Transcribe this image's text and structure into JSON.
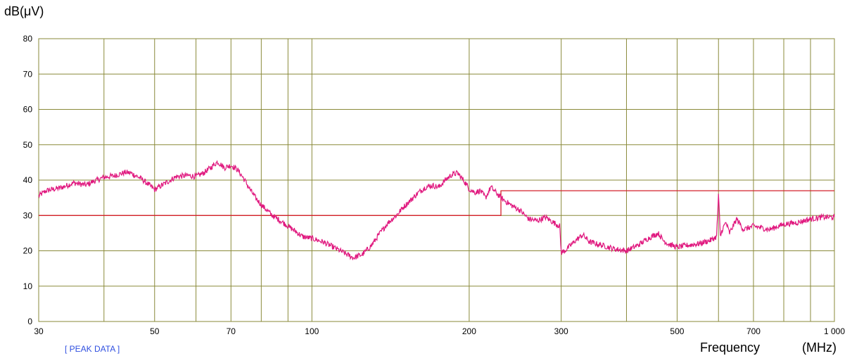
{
  "chart_data": {
    "type": "line",
    "ylabel": "dB(μV)",
    "xlabel": "Frequency",
    "xunit": "(MHz)",
    "annotation": "[ PEAK DATA ]",
    "x_scale": "log",
    "xlim": [
      30,
      1000
    ],
    "ylim": [
      0,
      80
    ],
    "y_ticks": [
      0,
      10,
      20,
      30,
      40,
      50,
      60,
      70,
      80
    ],
    "x_ticks": [
      30,
      50,
      70,
      100,
      200,
      300,
      500,
      700,
      1000
    ],
    "x_tick_labels": [
      "30",
      "50",
      "70",
      "100",
      "200",
      "300",
      "500",
      "700",
      "1 000"
    ],
    "x_gridlines": [
      30,
      40,
      50,
      60,
      70,
      80,
      90,
      100,
      200,
      300,
      400,
      500,
      600,
      700,
      800,
      900,
      1000
    ],
    "grid": true,
    "colors": {
      "grid": "#8a8a3a",
      "trace": "#e0197f",
      "limit": "#d4202a"
    },
    "limit_line": {
      "name": "",
      "points": [
        [
          30,
          30
        ],
        [
          230,
          30
        ],
        [
          230,
          37
        ],
        [
          1000,
          37
        ]
      ]
    },
    "series": [
      {
        "name": "",
        "points": [
          [
            30,
            35.5
          ],
          [
            31,
            37
          ],
          [
            33,
            37.8
          ],
          [
            35,
            39.2
          ],
          [
            37,
            38.6
          ],
          [
            38,
            39.5
          ],
          [
            40,
            40.8
          ],
          [
            42,
            41.3
          ],
          [
            44,
            42.2
          ],
          [
            45,
            42
          ],
          [
            47,
            40.5
          ],
          [
            48,
            39.5
          ],
          [
            50,
            37.3
          ],
          [
            52,
            38.8
          ],
          [
            55,
            41
          ],
          [
            58,
            41.3
          ],
          [
            60,
            41
          ],
          [
            62,
            42
          ],
          [
            64,
            43.5
          ],
          [
            66,
            45.2
          ],
          [
            68,
            43.5
          ],
          [
            70,
            44.2
          ],
          [
            72,
            43
          ],
          [
            74,
            40.5
          ],
          [
            76,
            37.5
          ],
          [
            78,
            35
          ],
          [
            80,
            33
          ],
          [
            84,
            30
          ],
          [
            88,
            28
          ],
          [
            92,
            26
          ],
          [
            96,
            24
          ],
          [
            100,
            23.5
          ],
          [
            105,
            22.5
          ],
          [
            110,
            21
          ],
          [
            115,
            19.5
          ],
          [
            120,
            18
          ],
          [
            125,
            19
          ],
          [
            130,
            21.5
          ],
          [
            135,
            25
          ],
          [
            140,
            28
          ],
          [
            145,
            30
          ],
          [
            150,
            32.5
          ],
          [
            155,
            34.5
          ],
          [
            160,
            36.5
          ],
          [
            165,
            38
          ],
          [
            170,
            38.5
          ],
          [
            175,
            38
          ],
          [
            180,
            40
          ],
          [
            185,
            41.5
          ],
          [
            190,
            42
          ],
          [
            195,
            40
          ],
          [
            200,
            37.5
          ],
          [
            205,
            36.5
          ],
          [
            210,
            37
          ],
          [
            215,
            35
          ],
          [
            220,
            38
          ],
          [
            225,
            36.5
          ],
          [
            230,
            35
          ],
          [
            240,
            33
          ],
          [
            250,
            31.5
          ],
          [
            260,
            29
          ],
          [
            270,
            28.5
          ],
          [
            280,
            29.5
          ],
          [
            290,
            28
          ],
          [
            298,
            27
          ],
          [
            300,
            19.5
          ],
          [
            305,
            20
          ],
          [
            320,
            23
          ],
          [
            330,
            24.5
          ],
          [
            340,
            22.5
          ],
          [
            360,
            21.5
          ],
          [
            380,
            20.5
          ],
          [
            400,
            20
          ],
          [
            420,
            21.5
          ],
          [
            440,
            23.5
          ],
          [
            460,
            25
          ],
          [
            470,
            23
          ],
          [
            480,
            22
          ],
          [
            500,
            21
          ],
          [
            520,
            21.5
          ],
          [
            550,
            22
          ],
          [
            580,
            23
          ],
          [
            595,
            24
          ],
          [
            600,
            36
          ],
          [
            605,
            24
          ],
          [
            610,
            26
          ],
          [
            620,
            28
          ],
          [
            630,
            25
          ],
          [
            650,
            29
          ],
          [
            670,
            26
          ],
          [
            700,
            27
          ],
          [
            750,
            26
          ],
          [
            800,
            27.5
          ],
          [
            850,
            28
          ],
          [
            900,
            29
          ],
          [
            950,
            29.5
          ],
          [
            1000,
            29.5
          ]
        ]
      }
    ]
  }
}
